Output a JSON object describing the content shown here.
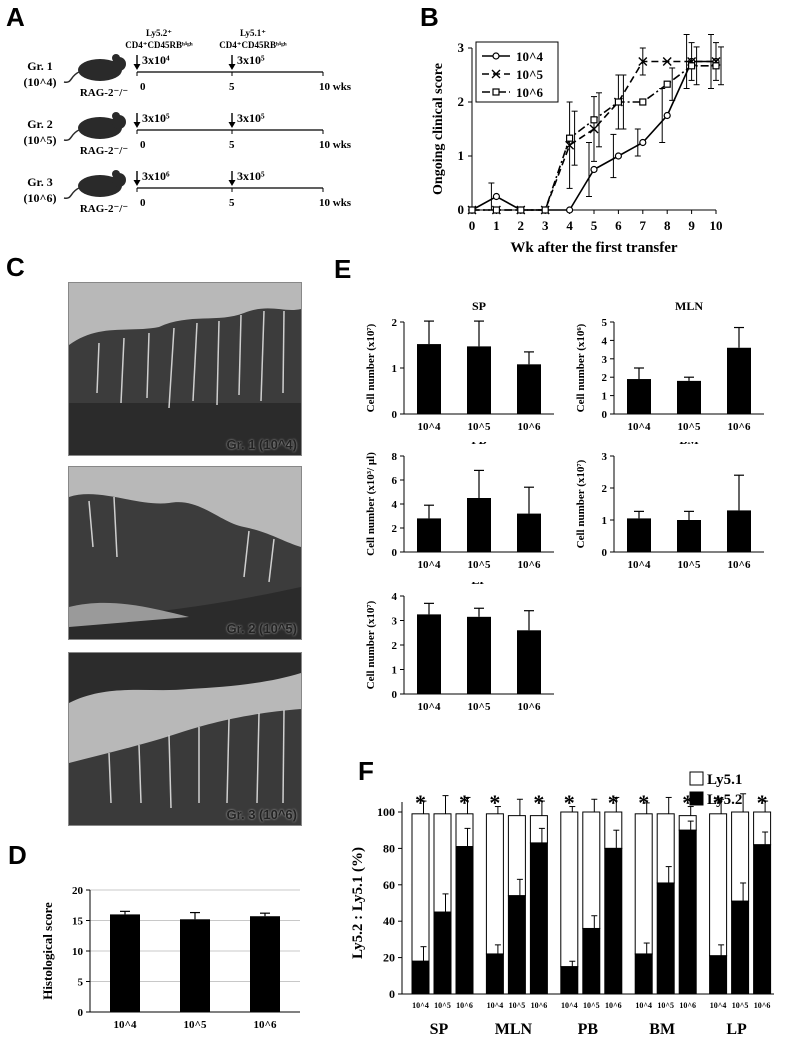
{
  "panel_labels": {
    "a": "A",
    "b": "B",
    "c": "C",
    "d": "D",
    "e": "E",
    "f": "F"
  },
  "panel_a": {
    "groups": [
      {
        "name": "Gr. 1",
        "dose": "(10^4)",
        "first_dose": "3x10⁴",
        "second_dose": "3x10⁵"
      },
      {
        "name": "Gr. 2",
        "dose": "(10^5)",
        "first_dose": "3x10⁵",
        "second_dose": "3x10⁵"
      },
      {
        "name": "Gr. 3",
        "dose": "(10^6)",
        "first_dose": "3x10⁶",
        "second_dose": "3x10⁵"
      }
    ],
    "mouse_label": "RAG-2⁻/⁻",
    "first_transfer_header": [
      "Ly5.2⁺",
      "CD4⁺CD45RBʰⁱᵍʰ"
    ],
    "second_transfer_header": [
      "Ly5.1⁺",
      "CD4⁺CD45RBʰⁱᵍʰ"
    ],
    "timeline_ticks": [
      "0",
      "5",
      "10 wks"
    ],
    "colors": {
      "mouse": "#2a2a2a"
    }
  },
  "panel_c": {
    "captions": [
      "Gr. 1 (10^4)",
      "Gr. 2 (10^5)",
      "Gr. 3 (10^6)"
    ],
    "colors": {
      "background": "#b9b9b9",
      "tissue": "#3a3a3a"
    }
  },
  "chart_data": [
    {
      "id": "B",
      "type": "line",
      "xlabel": "Wk after the first transfer",
      "ylabel": "Ongoing clinical score",
      "x": [
        0,
        1,
        2,
        3,
        4,
        5,
        6,
        7,
        8,
        9,
        10
      ],
      "xlim": [
        0,
        10
      ],
      "ylim": [
        0,
        3
      ],
      "yticks": [
        0,
        1,
        2,
        3
      ],
      "legend_position": "top-left",
      "series": [
        {
          "name": "10^4",
          "marker": "circle",
          "line": "solid",
          "values": [
            0,
            0.25,
            0,
            0,
            0,
            0.75,
            1.0,
            1.25,
            1.75,
            2.75,
            2.75
          ],
          "errors": [
            0,
            0.25,
            0,
            0,
            0,
            0.5,
            0.4,
            0.25,
            0.5,
            0.5,
            0.5
          ]
        },
        {
          "name": "10^5",
          "marker": "x",
          "line": "dashed",
          "values": [
            0,
            0,
            0,
            0,
            1.2,
            1.5,
            2.0,
            2.75,
            2.75,
            2.75,
            2.75
          ],
          "errors": [
            0,
            0,
            0,
            0,
            0.8,
            0.6,
            0.5,
            0.25,
            0,
            0.35,
            0.35
          ]
        },
        {
          "name": "10^6",
          "marker": "square",
          "line": "dash-dot",
          "values": [
            0,
            0,
            0,
            0,
            1.33,
            1.67,
            2.0,
            2.0,
            2.33,
            2.67,
            2.67
          ],
          "errors": [
            0,
            0,
            0,
            0,
            0.5,
            0.5,
            0.5,
            0,
            0.3,
            0.35,
            0.35
          ]
        }
      ]
    },
    {
      "id": "D",
      "type": "bar",
      "ylabel": "Histological score",
      "categories": [
        "10^4",
        "10^5",
        "10^6"
      ],
      "values": [
        16,
        15.2,
        15.7
      ],
      "errors": [
        0.5,
        1.1,
        0.5
      ],
      "ylim": [
        0,
        20
      ],
      "yticks": [
        0,
        5,
        10,
        15,
        20
      ],
      "grid": true
    },
    {
      "id": "E-SP",
      "type": "bar",
      "title": "SP",
      "ylabel": "Cell number (x10⁷)",
      "categories": [
        "10^4",
        "10^5",
        "10^6"
      ],
      "values": [
        1.52,
        1.47,
        1.08
      ],
      "errors": [
        0.5,
        0.55,
        0.27
      ],
      "ylim": [
        0,
        2
      ],
      "yticks": [
        0,
        1,
        2
      ]
    },
    {
      "id": "E-MLN",
      "type": "bar",
      "title": "MLN",
      "ylabel": "Cell number (x10⁶)",
      "categories": [
        "10^4",
        "10^5",
        "10^6"
      ],
      "values": [
        1.9,
        1.8,
        3.6
      ],
      "errors": [
        0.6,
        0.2,
        1.1
      ],
      "ylim": [
        0,
        5
      ],
      "yticks": [
        0,
        1,
        2,
        3,
        4,
        5
      ]
    },
    {
      "id": "E-PB",
      "type": "bar",
      "title": "PB",
      "ylabel": "Cell number (x10³/ μl)",
      "categories": [
        "10^4",
        "10^5",
        "10^6"
      ],
      "values": [
        2.8,
        4.5,
        3.2
      ],
      "errors": [
        1.1,
        2.3,
        2.2
      ],
      "ylim": [
        0,
        8
      ],
      "yticks": [
        0,
        2,
        4,
        6,
        8
      ]
    },
    {
      "id": "E-BM",
      "type": "bar",
      "title": "BM",
      "ylabel": "Cell number (x10⁷)",
      "categories": [
        "10^4",
        "10^5",
        "10^6"
      ],
      "values": [
        1.05,
        1.0,
        1.3
      ],
      "errors": [
        0.22,
        0.27,
        1.1
      ],
      "ylim": [
        0,
        3
      ],
      "yticks": [
        0,
        1,
        2,
        3
      ]
    },
    {
      "id": "E-LP",
      "type": "bar",
      "title": "LP",
      "ylabel": "Cell number (x10⁷)",
      "categories": [
        "10^4",
        "10^5",
        "10^6"
      ],
      "values": [
        3.25,
        3.15,
        2.6
      ],
      "errors": [
        0.45,
        0.35,
        0.8
      ],
      "ylim": [
        0,
        4
      ],
      "yticks": [
        0,
        1,
        2,
        3,
        4
      ]
    },
    {
      "id": "F",
      "type": "bar",
      "stacked": true,
      "ylabel": "Ly5.2 : Ly5.1 (%)",
      "ylim": [
        0,
        100
      ],
      "yticks": [
        0,
        20,
        40,
        60,
        80,
        100
      ],
      "legend_position": "top-right",
      "legend": [
        {
          "name": "Ly5.1",
          "color": "#ffffff"
        },
        {
          "name": "Ly5.2",
          "color": "#000000"
        }
      ],
      "groups": [
        "SP",
        "MLN",
        "PB",
        "BM",
        "LP"
      ],
      "categories": [
        "10^4",
        "10^5",
        "10^6"
      ],
      "significance_marker": "*",
      "series": [
        {
          "name": "Ly5.2",
          "values": [
            [
              18,
              45,
              81
            ],
            [
              22,
              54,
              83
            ],
            [
              15,
              36,
              80
            ],
            [
              22,
              61,
              90
            ],
            [
              21,
              51,
              82
            ]
          ],
          "errors": [
            [
              8,
              10,
              10
            ],
            [
              5,
              9,
              8
            ],
            [
              3,
              7,
              10
            ],
            [
              6,
              9,
              5
            ],
            [
              6,
              10,
              7
            ]
          ]
        },
        {
          "name": "Ly5.1",
          "values": [
            [
              81,
              54,
              18
            ],
            [
              77,
              44,
              15
            ],
            [
              85,
              64,
              20
            ],
            [
              77,
              38,
              8
            ],
            [
              78,
              49,
              18
            ]
          ],
          "errors": [
            [
              7,
              10,
              9
            ],
            [
              4,
              9,
              8
            ],
            [
              3,
              7,
              8
            ],
            [
              6,
              9,
              5
            ],
            [
              8,
              10,
              6
            ]
          ]
        }
      ]
    }
  ]
}
